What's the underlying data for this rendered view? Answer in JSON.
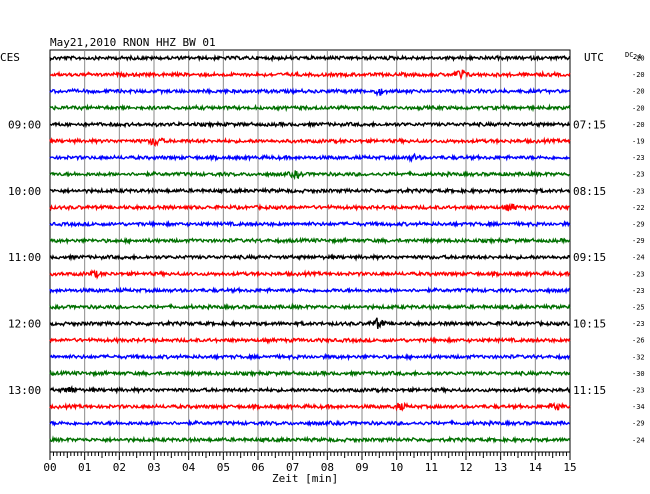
{
  "chart_data": {
    "type": "line",
    "title": "May21,2010  RNON HHZ BW 01",
    "left_timezone": "CES",
    "right_timezone": "UTC",
    "dc_label": "DC",
    "dc_value_top": "24",
    "xlabel": "Zeit [min]",
    "x_ticks": [
      "00",
      "01",
      "02",
      "03",
      "04",
      "05",
      "06",
      "07",
      "08",
      "09",
      "10",
      "11",
      "12",
      "13",
      "14",
      "15"
    ],
    "xlim": [
      0,
      15
    ],
    "left_hour_labels": [
      "09:00",
      "10:00",
      "11:00",
      "12:00",
      "13:00"
    ],
    "right_hour_labels": [
      "07:15",
      "08:15",
      "09:15",
      "10:15",
      "11:15"
    ],
    "hour_label_rows": [
      4,
      8,
      12,
      16,
      20
    ],
    "dc_offsets": [
      "-20",
      "-20",
      "-20",
      "-20",
      "-20",
      "-19",
      "-23",
      "-23",
      "-23",
      "-22",
      "-29",
      "-29",
      "-24",
      "-23",
      "-23",
      "-25",
      "-23",
      "-26",
      "-32",
      "-30",
      "-23",
      "-34",
      "-29",
      "-24"
    ],
    "trace_colors": [
      "#000000",
      "#ff0000",
      "#0000ff",
      "#007000"
    ],
    "trace_count": 24,
    "events": [
      {
        "row": 1,
        "minute": 11.85,
        "amp": 1.0
      },
      {
        "row": 2,
        "minute": 9.5,
        "amp": 0.6
      },
      {
        "row": 5,
        "minute": 3.05,
        "amp": 1.0
      },
      {
        "row": 6,
        "minute": 10.5,
        "amp": 0.5
      },
      {
        "row": 7,
        "minute": 7.1,
        "amp": 0.6
      },
      {
        "row": 9,
        "minute": 13.3,
        "amp": 0.6
      },
      {
        "row": 13,
        "minute": 1.3,
        "amp": 0.5
      },
      {
        "row": 16,
        "minute": 9.45,
        "amp": 1.0
      },
      {
        "row": 20,
        "minute": 0.6,
        "amp": 0.6
      },
      {
        "row": 21,
        "minute": 10.1,
        "amp": 0.6
      },
      {
        "row": 21,
        "minute": 14.6,
        "amp": 0.8
      }
    ]
  }
}
